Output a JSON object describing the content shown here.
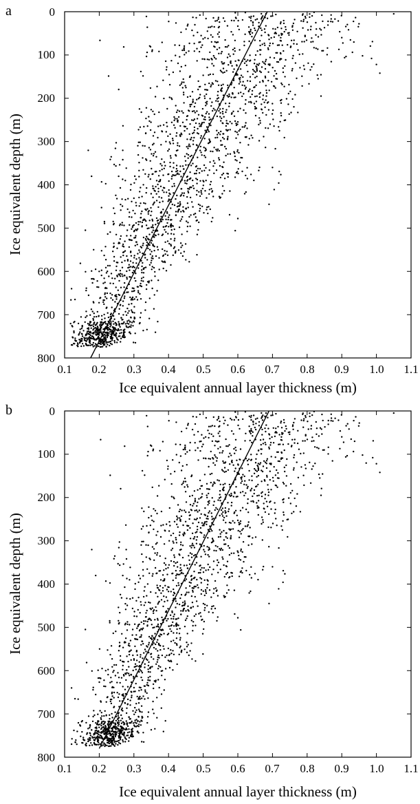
{
  "chart_data": [
    {
      "type": "scatter",
      "panel_label": "a",
      "xlabel": "Ice equivalent annual layer thickness (m)",
      "ylabel": "Ice equivalent depth (m)",
      "xlim": [
        0.1,
        1.1
      ],
      "ylim": [
        800,
        0
      ],
      "y_inverted": true,
      "x_ticks": [
        "0.1",
        "0.2",
        "0.3",
        "0.4",
        "0.5",
        "0.6",
        "0.7",
        "0.8",
        "0.9",
        "1.0",
        "1.1"
      ],
      "y_ticks": [
        "0",
        "100",
        "200",
        "300",
        "400",
        "500",
        "600",
        "700",
        "800"
      ],
      "grid": false,
      "legend": "none",
      "fit_line": {
        "x": [
          0.175,
          0.685
        ],
        "y": [
          800,
          0
        ]
      },
      "point_cloud": {
        "approx_count": 2200,
        "depth_min": 0,
        "depth_max": 775,
        "trend_at_depth_0": 0.69,
        "trend_at_depth_800": 0.175,
        "notable_outliers": [
          {
            "x": 0.96,
            "y": 102
          },
          {
            "x": 1.0,
            "y": 122
          },
          {
            "x": 1.01,
            "y": 142
          },
          {
            "x": 0.9,
            "y": 60
          },
          {
            "x": 0.84,
            "y": 195
          },
          {
            "x": 0.69,
            "y": 445
          },
          {
            "x": 0.12,
            "y": 640
          },
          {
            "x": 0.13,
            "y": 665
          },
          {
            "x": 0.16,
            "y": 505
          },
          {
            "x": 0.7,
            "y": 360
          },
          {
            "x": 0.6,
            "y": 478
          },
          {
            "x": 1.05,
            "y": 5
          }
        ]
      },
      "dot_color": "#000000"
    },
    {
      "type": "scatter",
      "panel_label": "b",
      "xlabel": "Ice equivalent annual layer thickness (m)",
      "ylabel": "Ice equivalent depth (m)",
      "xlim": [
        0.1,
        1.1
      ],
      "ylim": [
        800,
        0
      ],
      "y_inverted": true,
      "x_ticks": [
        "0.1",
        "0.2",
        "0.3",
        "0.4",
        "0.5",
        "0.6",
        "0.7",
        "0.8",
        "0.9",
        "1.0",
        "1.1"
      ],
      "y_ticks": [
        "0",
        "100",
        "200",
        "300",
        "400",
        "500",
        "600",
        "700",
        "800"
      ],
      "grid": false,
      "legend": "none",
      "fit_line": {
        "x": [
          0.2,
          0.69
        ],
        "y": [
          780,
          0
        ]
      },
      "point_cloud": {
        "approx_count": 2200,
        "depth_min": 0,
        "depth_max": 775,
        "trend_at_depth_0": 0.69,
        "trend_at_depth_800": 0.2,
        "notable_outliers": [
          {
            "x": 0.96,
            "y": 102
          },
          {
            "x": 1.0,
            "y": 122
          },
          {
            "x": 1.01,
            "y": 142
          },
          {
            "x": 0.9,
            "y": 60
          },
          {
            "x": 0.84,
            "y": 195
          },
          {
            "x": 0.69,
            "y": 445
          },
          {
            "x": 0.12,
            "y": 640
          },
          {
            "x": 0.13,
            "y": 665
          },
          {
            "x": 0.16,
            "y": 505
          },
          {
            "x": 0.7,
            "y": 360
          },
          {
            "x": 0.6,
            "y": 478
          },
          {
            "x": 1.05,
            "y": 5
          }
        ]
      },
      "dot_color": "#000000"
    }
  ]
}
